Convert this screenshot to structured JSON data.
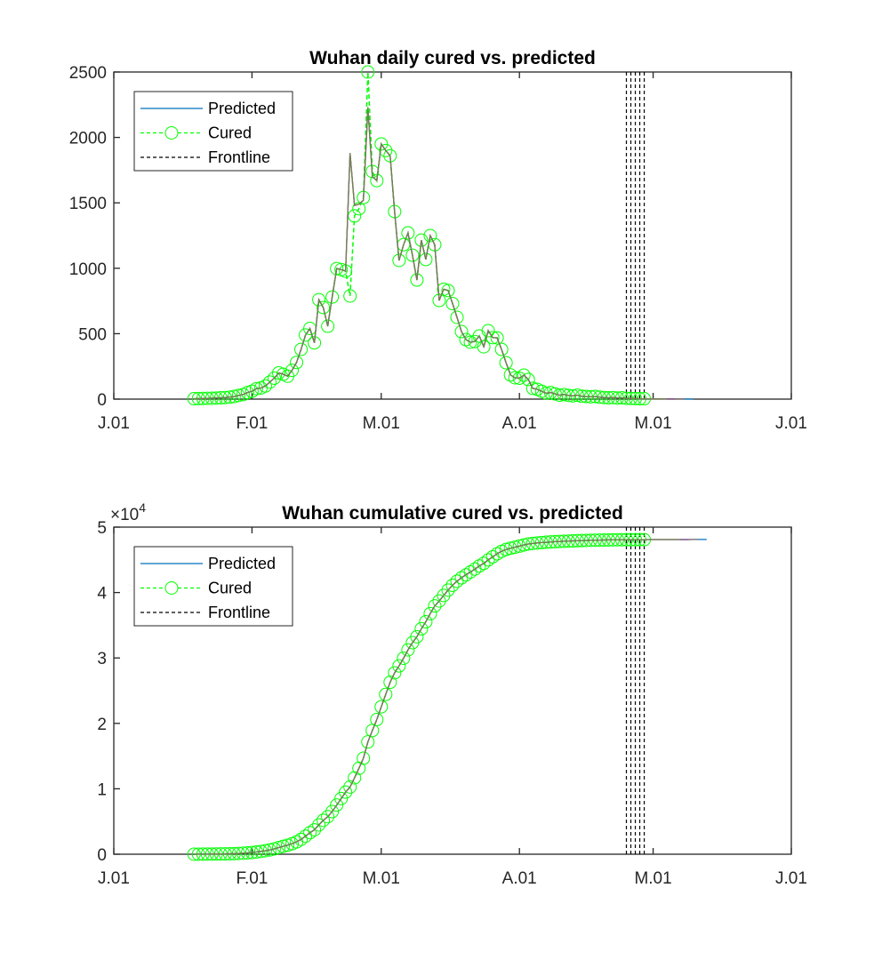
{
  "colors": {
    "predicted": "#0072BD",
    "predicted_overlays": [
      "#D95319",
      "#7E2F8E",
      "#77AC30"
    ],
    "cured": "#00FF00",
    "frontline": "#000000",
    "axes": "#262626"
  },
  "chart_data": [
    {
      "type": "line",
      "title": "Wuhan daily cured vs. predicted",
      "xlabel": "",
      "ylabel": "",
      "x_type": "date",
      "xlim": [
        "2020-01-01",
        "2020-06-01"
      ],
      "xticks": [
        "2020-01-01",
        "2020-02-01",
        "2020-03-01",
        "2020-04-01",
        "2020-05-01",
        "2020-06-01"
      ],
      "xtick_labels": [
        "J.01",
        "F.01",
        "M.01",
        "A.01",
        "M.01",
        "J.01"
      ],
      "ylim": [
        0,
        2500
      ],
      "yticks": [
        0,
        500,
        1000,
        1500,
        2000,
        2500
      ],
      "ytick_labels": [
        "0",
        "500",
        "1000",
        "1500",
        "2000",
        "2500"
      ],
      "y_exponent": "",
      "grid": false,
      "legend_placement": "top-left",
      "legend": [
        "Predicted",
        "Cured",
        "Frontline"
      ],
      "series": [
        {
          "name": "Predicted",
          "style": "solid",
          "start_date": "2020-01-19",
          "values": [
            3,
            4,
            5,
            6,
            7,
            8,
            10,
            12,
            15,
            20,
            28,
            35,
            50,
            60,
            80,
            85,
            100,
            130,
            160,
            200,
            190,
            175,
            220,
            280,
            380,
            490,
            540,
            430,
            760,
            700,
            557,
            780,
            998,
            990,
            978,
            1880,
            1480,
            1490,
            1520,
            2230,
            1700,
            1670,
            1950,
            1900,
            1860,
            1433,
            1060,
            1180,
            1270,
            1100,
            910,
            1215,
            1067,
            1250,
            1180,
            754,
            840,
            830,
            730,
            625,
            516,
            455,
            435,
            440,
            482,
            400,
            523,
            470,
            468,
            380,
            278,
            185,
            163,
            160,
            183,
            150,
            82,
            75,
            60,
            45,
            50,
            40,
            30,
            35,
            28,
            25,
            30,
            22,
            20,
            18,
            20,
            15,
            12,
            10,
            12,
            8,
            10,
            6,
            5,
            4,
            3,
            3,
            3,
            2,
            2,
            2,
            1,
            1,
            1,
            1,
            1,
            1,
            1
          ]
        },
        {
          "name": "Cured",
          "style": "dashed-circle",
          "start_date": "2020-01-19",
          "values": [
            3,
            4,
            5,
            6,
            7,
            8,
            10,
            12,
            15,
            20,
            28,
            35,
            50,
            60,
            80,
            85,
            100,
            130,
            160,
            200,
            190,
            175,
            220,
            280,
            380,
            490,
            540,
            430,
            760,
            700,
            557,
            780,
            998,
            990,
            978,
            788,
            1400,
            1455,
            1540,
            2500,
            1740,
            1670,
            1950,
            1900,
            1860,
            1433,
            1060,
            1180,
            1270,
            1100,
            910,
            1215,
            1067,
            1250,
            1180,
            754,
            840,
            830,
            730,
            625,
            516,
            455,
            435,
            440,
            482,
            400,
            523,
            470,
            468,
            380,
            278,
            185,
            163,
            160,
            183,
            150,
            82,
            75,
            60,
            45,
            50,
            40,
            30,
            35,
            28,
            25,
            30,
            22,
            20,
            18,
            20,
            15,
            12,
            10,
            12,
            8,
            10,
            6,
            5,
            4,
            3,
            3
          ]
        },
        {
          "name": "Frontline",
          "style": "dashed-vertical",
          "dates": [
            "2020-04-25",
            "2020-04-26",
            "2020-04-27",
            "2020-04-28",
            "2020-04-29"
          ]
        }
      ]
    },
    {
      "type": "line",
      "title": "Wuhan cumulative cured vs. predicted",
      "xlabel": "",
      "ylabel": "",
      "x_type": "date",
      "xlim": [
        "2020-01-01",
        "2020-06-01"
      ],
      "xticks": [
        "2020-01-01",
        "2020-02-01",
        "2020-03-01",
        "2020-04-01",
        "2020-05-01",
        "2020-06-01"
      ],
      "xtick_labels": [
        "J.01",
        "F.01",
        "M.01",
        "A.01",
        "M.01",
        "J.01"
      ],
      "ylim": [
        0,
        50000
      ],
      "yticks": [
        0,
        10000,
        20000,
        30000,
        40000,
        50000
      ],
      "ytick_labels": [
        "0",
        "1",
        "2",
        "3",
        "4",
        "5"
      ],
      "y_exponent": "×10",
      "y_exponent_power": "4",
      "grid": false,
      "legend_placement": "top-left",
      "legend": [
        "Predicted",
        "Cured",
        "Frontline"
      ],
      "series": [
        {
          "name": "Predicted",
          "style": "solid",
          "start_date": "2020-01-19",
          "values": [
            3,
            7,
            12,
            18,
            25,
            33,
            43,
            55,
            70,
            90,
            118,
            153,
            203,
            263,
            343,
            428,
            528,
            658,
            818,
            1018,
            1208,
            1383,
            1603,
            1883,
            2263,
            2753,
            3293,
            3723,
            4483,
            5183,
            5740,
            6520,
            7518,
            8508,
            9486,
            10274,
            11674,
            13129,
            14669,
            17169,
            18909,
            20579,
            22529,
            24429,
            26289,
            27722,
            28782,
            29962,
            31232,
            32332,
            33242,
            34457,
            35524,
            36774,
            37954,
            38708,
            39548,
            40378,
            41108,
            41733,
            42249,
            42704,
            43139,
            43579,
            44061,
            44461,
            44984,
            45454,
            45922,
            46302,
            46580,
            46765,
            46928,
            47088,
            47271,
            47421,
            47503,
            47578,
            47638,
            47683,
            47733,
            47773,
            47803,
            47838,
            47866,
            47891,
            47921,
            47943,
            47963,
            47981,
            48001,
            48016,
            48028,
            48038,
            48050,
            48058,
            48068,
            48074,
            48079,
            48083,
            48086,
            48089,
            48092,
            48094,
            48096,
            48098,
            48099,
            48100,
            48101,
            48102,
            48103,
            48104,
            48105,
            48105,
            48105,
            48105
          ]
        },
        {
          "name": "Cured",
          "style": "dashed-circle",
          "start_date": "2020-01-19",
          "values": [
            3,
            7,
            12,
            18,
            25,
            33,
            43,
            55,
            70,
            90,
            118,
            153,
            203,
            263,
            343,
            428,
            528,
            658,
            818,
            1018,
            1208,
            1383,
            1603,
            1883,
            2263,
            2753,
            3293,
            3723,
            4483,
            5183,
            5740,
            6520,
            7518,
            8508,
            9486,
            10274,
            11674,
            13129,
            14669,
            17169,
            18909,
            20579,
            22529,
            24429,
            26289,
            27722,
            28782,
            29962,
            31232,
            32332,
            33242,
            34457,
            35524,
            36774,
            37954,
            38708,
            39548,
            40378,
            41108,
            41733,
            42249,
            42704,
            43139,
            43579,
            44061,
            44461,
            44984,
            45454,
            45922,
            46302,
            46580,
            46765,
            46928,
            47088,
            47271,
            47421,
            47503,
            47578,
            47638,
            47683,
            47733,
            47773,
            47803,
            47838,
            47866,
            47891,
            47921,
            47943,
            47963,
            47981,
            48001,
            48016,
            48028,
            48038,
            48050,
            48058,
            48068,
            48074,
            48079,
            48083,
            48086,
            48089
          ]
        },
        {
          "name": "Frontline",
          "style": "dashed-vertical",
          "dates": [
            "2020-04-25",
            "2020-04-26",
            "2020-04-27",
            "2020-04-28",
            "2020-04-29"
          ]
        }
      ]
    }
  ]
}
